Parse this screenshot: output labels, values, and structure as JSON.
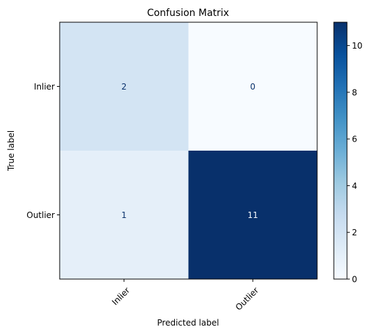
{
  "chart_data": {
    "type": "heatmap",
    "title": "Confusion Matrix",
    "xlabel": "Predicted label",
    "ylabel": "True label",
    "x_categories": [
      "Inlier",
      "Outlier"
    ],
    "y_categories": [
      "Inlier",
      "Outlier"
    ],
    "values": [
      [
        2,
        0
      ],
      [
        1,
        11
      ]
    ],
    "colormap": "Blues",
    "vmin": 0,
    "vmax": 11,
    "colorbar_ticks": [
      0,
      2,
      4,
      6,
      8,
      10
    ],
    "grid": false
  }
}
